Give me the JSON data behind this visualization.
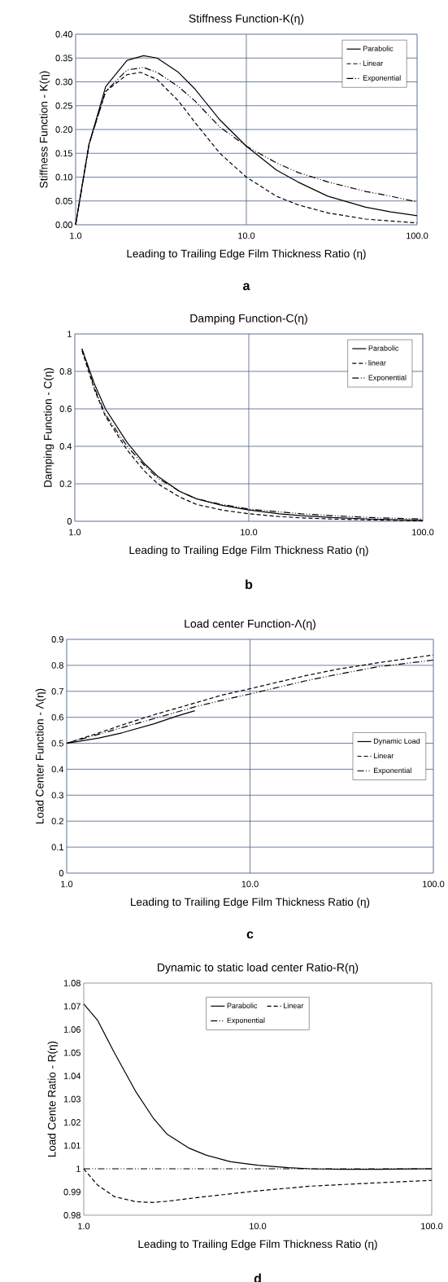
{
  "chart_data": [
    {
      "type": "line",
      "title": "Stiffness Function-K(η)",
      "xlabel": "Leading to Trailing Edge Film Thickness Ratio (η)",
      "ylabel": "Stiffness Function - K(η)",
      "annotations": [
        "a"
      ],
      "log": "x",
      "grid": true,
      "legend": "top right",
      "xlim": [
        1,
        100
      ],
      "xticks": [
        {
          "value": 1,
          "label": "1.0"
        },
        {
          "value": 10,
          "label": "10.0"
        },
        {
          "value": 100,
          "label": "100.0"
        }
      ],
      "ylim": [
        0,
        0.4
      ],
      "yticks": [
        {
          "value": 0,
          "label": "0.00"
        },
        {
          "value": 0.05,
          "label": "0.05"
        },
        {
          "value": 0.1,
          "label": "0.10"
        },
        {
          "value": 0.15,
          "label": "0.15"
        },
        {
          "value": 0.2,
          "label": "0.20"
        },
        {
          "value": 0.25,
          "label": "0.25"
        },
        {
          "value": 0.3,
          "label": "0.30"
        },
        {
          "value": 0.35,
          "label": "0.35"
        },
        {
          "value": 0.4,
          "label": "0.40"
        }
      ],
      "series": [
        {
          "name": "Parabolic",
          "color": "#000000",
          "line_style": "solid",
          "x": [
            1,
            1.2,
            1.5,
            2,
            2.5,
            3,
            4,
            5,
            7,
            10,
            15,
            20,
            30,
            50,
            70,
            100
          ],
          "values": [
            0,
            0.17,
            0.29,
            0.345,
            0.355,
            0.35,
            0.32,
            0.285,
            0.22,
            0.165,
            0.115,
            0.09,
            0.06,
            0.037,
            0.027,
            0.019
          ]
        },
        {
          "name": "Linear",
          "color": "#000000",
          "line_style": "dashed",
          "x": [
            1,
            1.2,
            1.5,
            2,
            2.4,
            3,
            4,
            5,
            7,
            10,
            15,
            20,
            30,
            50,
            70,
            100
          ],
          "values": [
            0,
            0.17,
            0.28,
            0.315,
            0.32,
            0.305,
            0.26,
            0.215,
            0.15,
            0.1,
            0.06,
            0.042,
            0.025,
            0.012,
            0.008,
            0.004
          ]
        },
        {
          "name": "Exponential",
          "color": "#000000",
          "line_style": "dashdotted",
          "x": [
            1,
            1.2,
            1.5,
            2,
            2.5,
            3,
            4,
            5,
            7,
            10,
            15,
            20,
            30,
            50,
            70,
            100
          ],
          "values": [
            0,
            0.17,
            0.28,
            0.325,
            0.33,
            0.32,
            0.29,
            0.26,
            0.205,
            0.165,
            0.13,
            0.11,
            0.09,
            0.07,
            0.06,
            0.048
          ]
        }
      ]
    },
    {
      "type": "line",
      "title": "Damping Function-C(η)",
      "xlabel": "Leading to Trailing Edge Film Thickness Ratio (η)",
      "ylabel": "Damping Function - C(η)",
      "annotations": [
        "b"
      ],
      "log": "x",
      "grid": true,
      "legend": "top right",
      "xlim": [
        1,
        100
      ],
      "xticks": [
        {
          "value": 1,
          "label": "1.0"
        },
        {
          "value": 10,
          "label": "10.0"
        },
        {
          "value": 100,
          "label": "100.0"
        }
      ],
      "ylim": [
        0,
        1
      ],
      "yticks": [
        0,
        0.2,
        0.4,
        0.6,
        0.8,
        1
      ],
      "series": [
        {
          "name": "Parabolic",
          "color": "#000000",
          "line_style": "solid",
          "x": [
            1.1,
            1.3,
            1.5,
            2,
            2.5,
            3,
            4,
            5,
            7,
            10,
            15,
            20,
            30,
            50,
            100
          ],
          "values": [
            0.92,
            0.73,
            0.6,
            0.42,
            0.31,
            0.24,
            0.16,
            0.12,
            0.085,
            0.06,
            0.04,
            0.03,
            0.02,
            0.012,
            0.005
          ]
        },
        {
          "name": "linear",
          "color": "#000000",
          "line_style": "dashed",
          "x": [
            1.1,
            1.3,
            1.5,
            2,
            2.5,
            3,
            4,
            5,
            7,
            10,
            15,
            20,
            30,
            50,
            100
          ],
          "values": [
            0.91,
            0.7,
            0.56,
            0.38,
            0.27,
            0.2,
            0.13,
            0.09,
            0.06,
            0.04,
            0.025,
            0.018,
            0.012,
            0.007,
            0.003
          ]
        },
        {
          "name": "Exponential",
          "color": "#000000",
          "line_style": "dashdotted",
          "x": [
            1.1,
            1.3,
            1.5,
            2,
            2.5,
            3,
            4,
            5,
            7,
            10,
            15,
            20,
            30,
            50,
            100
          ],
          "values": [
            0.92,
            0.71,
            0.57,
            0.4,
            0.3,
            0.23,
            0.16,
            0.12,
            0.09,
            0.065,
            0.05,
            0.04,
            0.03,
            0.02,
            0.012
          ]
        }
      ]
    },
    {
      "type": "line",
      "title": "Load center Function-Λ(η)",
      "xlabel": "Leading to Trailing Edge Film Thickness Ratio (η)",
      "ylabel": "Load Center Function - Λ(η)",
      "annotations": [
        "c"
      ],
      "log": "x",
      "grid": true,
      "legend": "right",
      "xlim": [
        1,
        100
      ],
      "xticks": [
        {
          "value": 1,
          "label": "1.0"
        },
        {
          "value": 10,
          "label": "10.0"
        },
        {
          "value": 100,
          "label": "100.0"
        }
      ],
      "ylim": [
        0,
        0.9
      ],
      "yticks": [
        0,
        0.1,
        0.2,
        0.3,
        0.4,
        0.5,
        0.6,
        0.7,
        0.8,
        0.9
      ],
      "series": [
        {
          "name": "Dynamic Load",
          "color": "#000000",
          "line_style": "solid",
          "x": [
            1,
            1.5,
            2,
            3,
            4,
            5
          ],
          "values": [
            0.5,
            0.52,
            0.54,
            0.575,
            0.605,
            0.625
          ]
        },
        {
          "name": "Linear",
          "color": "#000000",
          "line_style": "dashed",
          "x": [
            1,
            1.5,
            2,
            3,
            5,
            7,
            10,
            20,
            30,
            50,
            100
          ],
          "values": [
            0.5,
            0.54,
            0.57,
            0.61,
            0.655,
            0.685,
            0.71,
            0.76,
            0.785,
            0.81,
            0.84
          ]
        },
        {
          "name": "Exponential",
          "color": "#000000",
          "line_style": "dashdotted",
          "x": [
            1,
            1.5,
            2,
            3,
            5,
            7,
            10,
            20,
            30,
            50,
            100
          ],
          "values": [
            0.5,
            0.535,
            0.56,
            0.595,
            0.64,
            0.665,
            0.69,
            0.74,
            0.765,
            0.795,
            0.82
          ]
        }
      ]
    },
    {
      "type": "line",
      "title": "Dynamic to static load center Ratio-R(η)",
      "xlabel": "Leading to Trailing Edge Film Thickness Ratio (η)",
      "ylabel": "Load Cente Ratio - R(η)",
      "annotations": [
        "d"
      ],
      "log": "x",
      "grid": false,
      "legend": "top",
      "xlim": [
        1,
        100
      ],
      "xticks": [
        {
          "value": 1,
          "label": "1.0"
        },
        {
          "value": 10,
          "label": "10.0"
        },
        {
          "value": 100,
          "label": "100.0"
        }
      ],
      "ylim": [
        0.98,
        1.08
      ],
      "yticks": [
        0.98,
        0.99,
        1,
        1.01,
        1.02,
        1.03,
        1.04,
        1.05,
        1.06,
        1.07,
        1.08
      ],
      "series": [
        {
          "name": "Parabolic",
          "color": "#000000",
          "line_style": "solid",
          "x": [
            1,
            1.2,
            1.5,
            2,
            2.5,
            3,
            4,
            5,
            7,
            10,
            15,
            20,
            30,
            50,
            100
          ],
          "values": [
            1.071,
            1.064,
            1.05,
            1.033,
            1.022,
            1.015,
            1.009,
            1.006,
            1.003,
            1.0015,
            1.0005,
            1.0,
            0.9998,
            0.9998,
            1.0
          ]
        },
        {
          "name": "Linear",
          "color": "#000000",
          "line_style": "dashed",
          "x": [
            1,
            1.2,
            1.5,
            2,
            2.5,
            3,
            5,
            10,
            20,
            50,
            100
          ],
          "values": [
            1.0,
            0.993,
            0.988,
            0.9858,
            0.9855,
            0.986,
            0.988,
            0.9905,
            0.9925,
            0.994,
            0.995
          ]
        },
        {
          "name": "Exponential",
          "color": "#000000",
          "line_style": "dashdotted",
          "x": [
            1,
            10,
            100
          ],
          "values": [
            1.0,
            1.0,
            1.0
          ]
        }
      ]
    }
  ]
}
